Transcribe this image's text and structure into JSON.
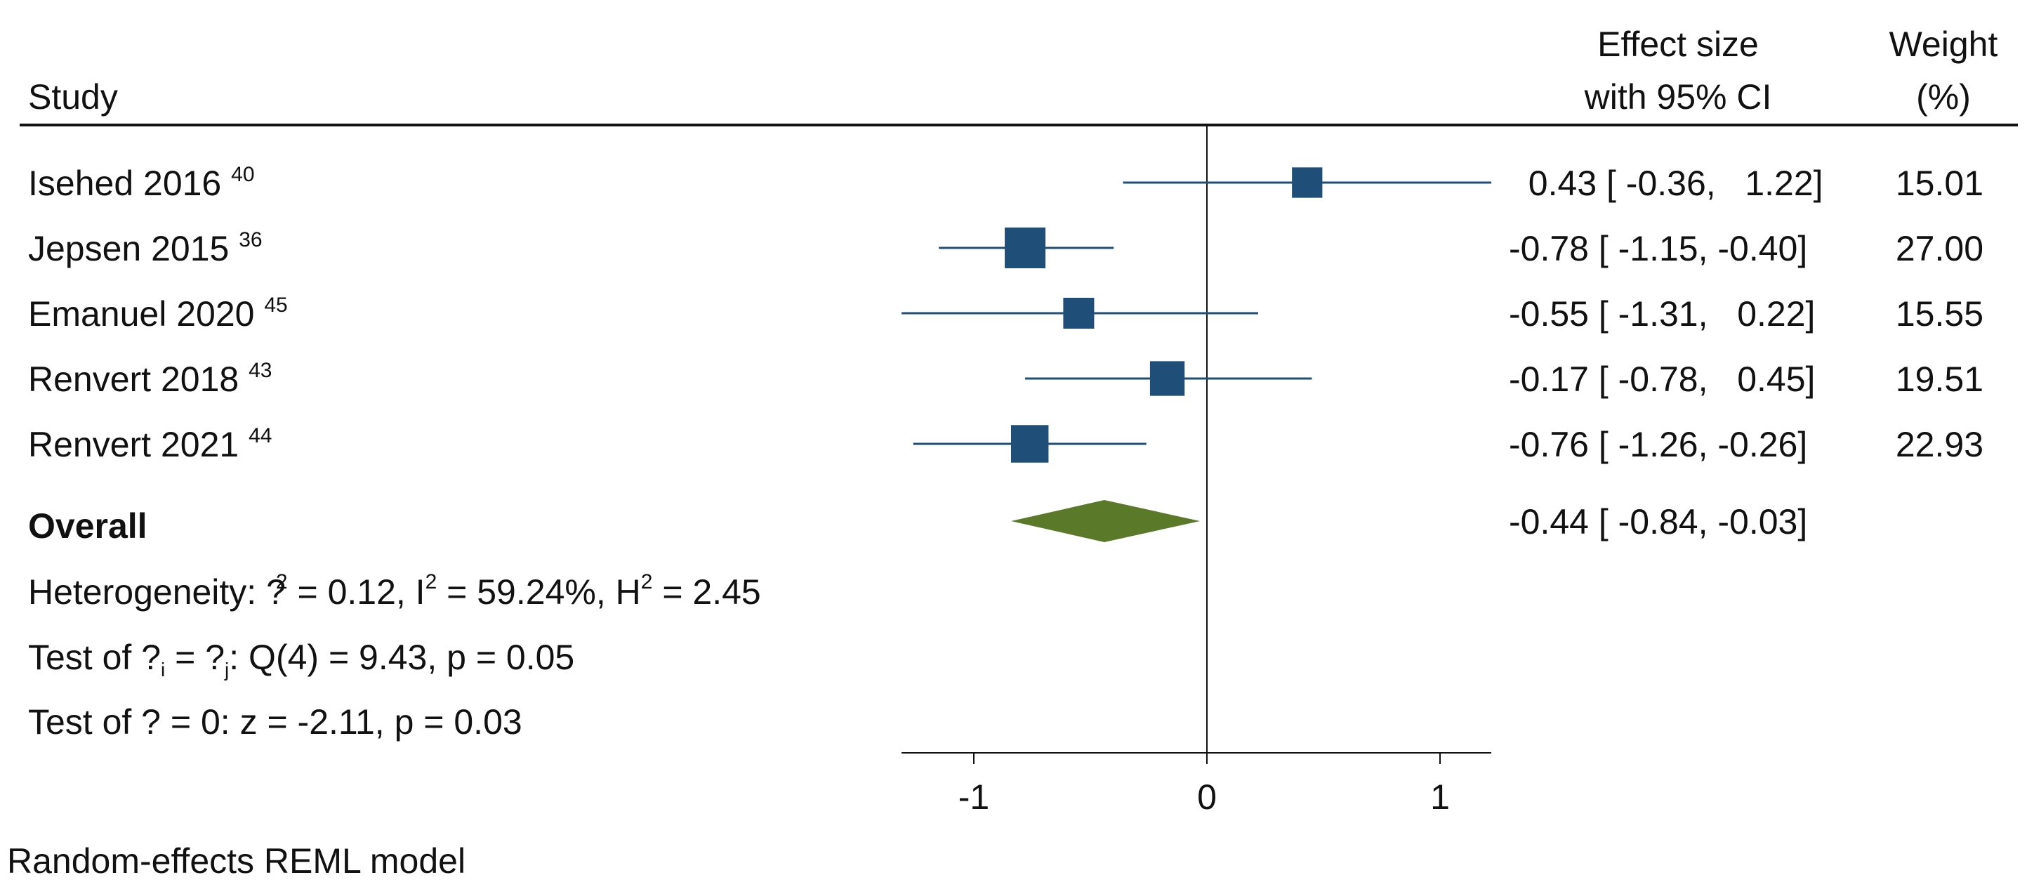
{
  "chart_data": {
    "type": "forest",
    "header": {
      "study": "Study",
      "effect_line1": "Effect size",
      "effect_line2": "with 95% CI",
      "weight_line1": "Weight",
      "weight_line2": "(%)"
    },
    "studies": [
      {
        "name": "Isehed 2016",
        "ref": "40",
        "es": 0.43,
        "lo": -0.36,
        "hi": 1.22,
        "es_text": "0.43",
        "lo_text": "-0.36",
        "hi_text": "1.22",
        "weight": "15.01"
      },
      {
        "name": "Jepsen 2015",
        "ref": "36",
        "es": -0.78,
        "lo": -1.15,
        "hi": -0.4,
        "es_text": "-0.78",
        "lo_text": "-1.15",
        "hi_text": "-0.40",
        "weight": "27.00"
      },
      {
        "name": "Emanuel 2020",
        "ref": "45",
        "es": -0.55,
        "lo": -1.31,
        "hi": 0.22,
        "es_text": "-0.55",
        "lo_text": "-1.31",
        "hi_text": "0.22",
        "weight": "15.55"
      },
      {
        "name": "Renvert 2018",
        "ref": "43",
        "es": -0.17,
        "lo": -0.78,
        "hi": 0.45,
        "es_text": "-0.17",
        "lo_text": "-0.78",
        "hi_text": "0.45",
        "weight": "19.51"
      },
      {
        "name": "Renvert 2021",
        "ref": "44",
        "es": -0.76,
        "lo": -1.26,
        "hi": -0.26,
        "es_text": "-0.76",
        "lo_text": "-1.26",
        "hi_text": "-0.26",
        "weight": "22.93"
      }
    ],
    "overall": {
      "label": "Overall",
      "es": -0.44,
      "lo": -0.84,
      "hi": -0.03,
      "es_text": "-0.44",
      "lo_text": "-0.84",
      "hi_text": "-0.03"
    },
    "heterogeneity": {
      "prefix": "Heterogeneity: ",
      "sym": "?",
      "sq": "2",
      "t1": " = 0.12, I",
      "t2": " = 59.24%, H",
      "t3": " = 2.45"
    },
    "test_theta": {
      "prefix": "Test of ",
      "sym1": "?",
      "sub1": "i",
      "mid": " = ",
      "sym2": "?",
      "sub2": "j",
      "rest": ": Q(4) = 9.43, p = 0.05"
    },
    "test_zero": "Test of ? = 0: z = -2.11, p = 0.03",
    "model_note": "Random-effects REML model",
    "x_ticks": [
      -1,
      0,
      1
    ],
    "x_tick_labels": [
      "-1",
      "0",
      "1"
    ],
    "xlim": [
      -1.31,
      1.22
    ],
    "ylabel": "",
    "xlabel": "",
    "colors": {
      "square": "#1f4e79",
      "ci_line": "#1f4e79",
      "diamond": "#5a7a2a",
      "text": "#111111",
      "axis": "#111111"
    }
  }
}
